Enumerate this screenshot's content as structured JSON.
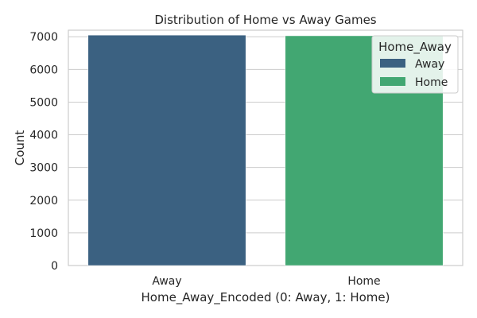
{
  "chart_data": {
    "type": "bar",
    "title": "Distribution of Home vs Away Games",
    "xlabel": "Home_Away_Encoded (0: Away, 1: Home)",
    "ylabel": "Count",
    "categories": [
      "Away",
      "Home"
    ],
    "values": [
      7050,
      7030
    ],
    "colors": [
      "#3b6181",
      "#42a772"
    ],
    "ylim": [
      0,
      7200
    ],
    "yticks": [
      0,
      1000,
      2000,
      3000,
      4000,
      5000,
      6000,
      7000
    ],
    "grid": true,
    "legend": {
      "title": "Home_Away",
      "placement": "top-right",
      "entries": [
        {
          "label": "Away",
          "color": "#3b6181"
        },
        {
          "label": "Home",
          "color": "#42a772"
        }
      ]
    }
  }
}
